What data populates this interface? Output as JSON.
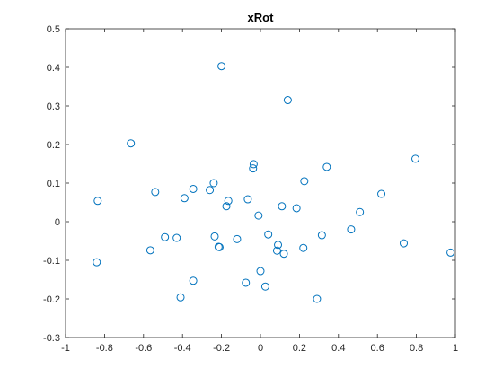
{
  "chart_data": {
    "type": "scatter",
    "title": "xRot",
    "xlabel": "",
    "ylabel": "",
    "xlim": [
      -1,
      1
    ],
    "ylim": [
      -0.3,
      0.5
    ],
    "x_ticks": [
      -1,
      -0.8,
      -0.6,
      -0.4,
      -0.2,
      0,
      0.2,
      0.4,
      0.6,
      0.8,
      1
    ],
    "x_tick_labels": [
      "-1",
      "-0.8",
      "-0.6",
      "-0.4",
      "-0.2",
      "0",
      "0.2",
      "0.4",
      "0.6",
      "0.8",
      "1"
    ],
    "y_ticks": [
      -0.3,
      -0.2,
      -0.1,
      0,
      0.1,
      0.2,
      0.3,
      0.4,
      0.5
    ],
    "y_tick_labels": [
      "-0.3",
      "-0.2",
      "-0.1",
      "0",
      "0.1",
      "0.2",
      "0.3",
      "0.4",
      "0.5"
    ],
    "grid": false,
    "legend": "none",
    "marker": "open-circle",
    "series": [
      {
        "color": "#0072BD",
        "points": [
          [
            -0.2,
            0.403
          ],
          [
            0.14,
            0.315
          ],
          [
            -0.665,
            0.203
          ],
          [
            0.795,
            0.163
          ],
          [
            -0.035,
            0.149
          ],
          [
            -0.038,
            0.138
          ],
          [
            0.34,
            0.142
          ],
          [
            0.225,
            0.105
          ],
          [
            -0.24,
            0.1
          ],
          [
            -0.345,
            0.085
          ],
          [
            -0.26,
            0.082
          ],
          [
            -0.54,
            0.077
          ],
          [
            0.62,
            0.072
          ],
          [
            -0.39,
            0.061
          ],
          [
            -0.065,
            0.058
          ],
          [
            -0.835,
            0.054
          ],
          [
            -0.165,
            0.054
          ],
          [
            -0.175,
            0.04
          ],
          [
            0.11,
            0.04
          ],
          [
            0.185,
            0.035
          ],
          [
            0.51,
            0.025
          ],
          [
            -0.01,
            0.016
          ],
          [
            0.465,
            -0.02
          ],
          [
            0.04,
            -0.033
          ],
          [
            0.315,
            -0.035
          ],
          [
            -0.235,
            -0.038
          ],
          [
            -0.49,
            -0.04
          ],
          [
            -0.43,
            -0.042
          ],
          [
            -0.12,
            -0.045
          ],
          [
            0.735,
            -0.056
          ],
          [
            0.09,
            -0.06
          ],
          [
            -0.215,
            -0.065
          ],
          [
            -0.21,
            -0.066
          ],
          [
            0.22,
            -0.068
          ],
          [
            -0.565,
            -0.074
          ],
          [
            0.085,
            -0.075
          ],
          [
            0.975,
            -0.08
          ],
          [
            0.12,
            -0.083
          ],
          [
            -0.84,
            -0.105
          ],
          [
            0.0,
            -0.128
          ],
          [
            -0.345,
            -0.153
          ],
          [
            -0.075,
            -0.158
          ],
          [
            0.025,
            -0.168
          ],
          [
            -0.41,
            -0.196
          ],
          [
            0.29,
            -0.2
          ]
        ]
      }
    ]
  }
}
